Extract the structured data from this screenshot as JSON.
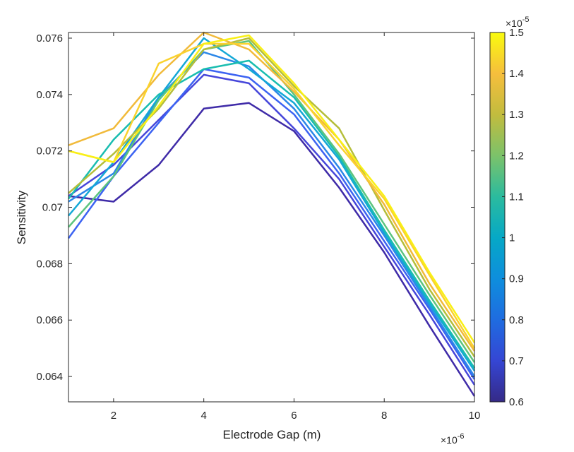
{
  "chart_data": {
    "type": "line",
    "xlabel": "Electrode Gap (m)",
    "ylabel": "Sensitivity",
    "x_exponent_label": "×10",
    "x_exponent_power": "-6",
    "xlim": [
      1,
      10
    ],
    "ylim": [
      0.0631,
      0.0762
    ],
    "x_ticks": [
      2,
      4,
      6,
      8,
      10
    ],
    "x_tick_labels": [
      "2",
      "4",
      "6",
      "8",
      "10"
    ],
    "y_ticks": [
      0.064,
      0.066,
      0.068,
      0.07,
      0.072,
      0.074,
      0.076
    ],
    "y_tick_labels": [
      "0.064",
      "0.066",
      "0.068",
      "0.07",
      "0.072",
      "0.074",
      "0.076"
    ],
    "grid": false,
    "x": [
      1,
      2,
      3,
      4,
      5,
      6,
      7,
      8,
      9,
      10
    ],
    "series": [
      {
        "color": "#3F2BA8",
        "values": [
          0.0704,
          0.0702,
          0.0715,
          0.0735,
          0.0737,
          0.0727,
          0.0707,
          0.0684,
          0.0658,
          0.0633
        ]
      },
      {
        "color": "#4646DA",
        "values": [
          0.0704,
          0.0715,
          0.0731,
          0.0747,
          0.0744,
          0.0728,
          0.071,
          0.0686,
          0.0662,
          0.0637
        ]
      },
      {
        "color": "#3C63F2",
        "values": [
          0.0689,
          0.0711,
          0.073,
          0.0749,
          0.0746,
          0.0733,
          0.0712,
          0.0688,
          0.0664,
          0.0639
        ]
      },
      {
        "color": "#2B87E8",
        "values": [
          0.0702,
          0.0712,
          0.0739,
          0.0755,
          0.075,
          0.0735,
          0.0714,
          0.069,
          0.0665,
          0.064
        ]
      },
      {
        "color": "#14A8D6",
        "values": [
          0.0697,
          0.0716,
          0.0739,
          0.076,
          0.0749,
          0.0737,
          0.0717,
          0.0691,
          0.0666,
          0.0642
        ]
      },
      {
        "color": "#19BDB0",
        "values": [
          0.0703,
          0.0724,
          0.074,
          0.0749,
          0.0752,
          0.0739,
          0.0718,
          0.0692,
          0.0667,
          0.0643
        ]
      },
      {
        "color": "#5CC47E",
        "values": [
          0.0693,
          0.0711,
          0.0738,
          0.0756,
          0.0759,
          0.074,
          0.0719,
          0.0694,
          0.0669,
          0.0645
        ]
      },
      {
        "color": "#B5BE3A",
        "values": [
          0.0705,
          0.0719,
          0.0735,
          0.0756,
          0.076,
          0.0743,
          0.0728,
          0.0699,
          0.0671,
          0.0647
        ]
      },
      {
        "color": "#F1BA3A",
        "values": [
          0.0722,
          0.0728,
          0.0747,
          0.0762,
          0.0756,
          0.0741,
          0.0724,
          0.0701,
          0.0673,
          0.0649
        ]
      },
      {
        "color": "#FAD22E",
        "values": [
          0.072,
          0.0716,
          0.0751,
          0.0758,
          0.0758,
          0.0742,
          0.0722,
          0.0703,
          0.0676,
          0.065
        ]
      },
      {
        "color": "#F9F016",
        "values": [
          0.072,
          0.0716,
          0.0736,
          0.0758,
          0.0761,
          0.0744,
          0.0724,
          0.0704,
          0.0677,
          0.0652
        ]
      }
    ],
    "colorbar": {
      "colormap": "parula",
      "range": [
        0.6,
        1.5
      ],
      "ticks": [
        0.6,
        0.7,
        0.8,
        0.9,
        1,
        1.1,
        1.2,
        1.3,
        1.4,
        1.5
      ],
      "tick_labels": [
        "0.6",
        "0.7",
        "0.8",
        "0.9",
        "1",
        "1.1",
        "1.2",
        "1.3",
        "1.4",
        "1.5"
      ],
      "exponent_label": "×10",
      "exponent_power": "-5",
      "colors": [
        "#352A87",
        "#3546D4",
        "#1F6CE0",
        "#0E8EDD",
        "#06A8C6",
        "#2BBB9E",
        "#7CC26A",
        "#C2BC3E",
        "#F6BE3D",
        "#F9FB0E"
      ]
    }
  }
}
